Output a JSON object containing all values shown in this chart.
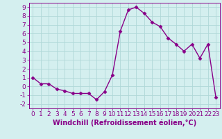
{
  "x": [
    0,
    1,
    2,
    3,
    4,
    5,
    6,
    7,
    8,
    9,
    10,
    11,
    12,
    13,
    14,
    15,
    16,
    17,
    18,
    19,
    20,
    21,
    22,
    23
  ],
  "y": [
    1.0,
    0.3,
    0.3,
    -0.3,
    -0.5,
    -0.8,
    -0.8,
    -0.8,
    -1.5,
    -0.6,
    1.3,
    6.3,
    8.7,
    9.0,
    8.3,
    7.3,
    6.8,
    5.5,
    4.8,
    4.0,
    4.8,
    3.2,
    4.8,
    -1.2
  ],
  "line_color": "#880088",
  "marker": "D",
  "marker_size": 2.5,
  "bg_color": "#d4efef",
  "grid_color": "#b0d8d8",
  "xlabel": "Windchill (Refroidissement éolien,°C)",
  "xlim": [
    -0.5,
    23.5
  ],
  "ylim": [
    -2.5,
    9.5
  ],
  "yticks": [
    -2,
    -1,
    0,
    1,
    2,
    3,
    4,
    5,
    6,
    7,
    8,
    9
  ],
  "xticks": [
    0,
    1,
    2,
    3,
    4,
    5,
    6,
    7,
    8,
    9,
    10,
    11,
    12,
    13,
    14,
    15,
    16,
    17,
    18,
    19,
    20,
    21,
    22,
    23
  ],
  "tick_fontsize": 6.5,
  "xlabel_fontsize": 7.0,
  "line_width": 1.0
}
